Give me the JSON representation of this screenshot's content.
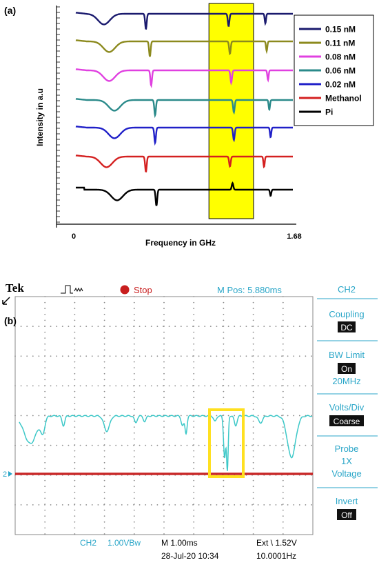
{
  "panel_a": {
    "label": "(a)",
    "chart_data": {
      "type": "line",
      "xlabel": "Frequency in GHz",
      "ylabel": "Intensity in a.u",
      "x_ticks": [
        "0",
        "1.68"
      ],
      "xlim": [
        0,
        1.68
      ],
      "highlight": {
        "x_range": [
          1.03,
          1.37
        ],
        "color": "#ffff00"
      },
      "legend_position": "top-right",
      "series": [
        {
          "name": "0.15 nM",
          "color": "#1a1a6e",
          "dips": [
            {
              "x": 0.23,
              "depth": 0.55
            },
            {
              "x": 0.55,
              "depth": 0.85
            },
            {
              "x": 1.18,
              "depth": 0.75
            },
            {
              "x": 1.46,
              "depth": 0.7
            }
          ]
        },
        {
          "name": "0.11 nM",
          "color": "#8c8a1e",
          "dips": [
            {
              "x": 0.27,
              "depth": 0.55
            },
            {
              "x": 0.58,
              "depth": 0.85
            },
            {
              "x": 1.19,
              "depth": 0.75
            },
            {
              "x": 1.47,
              "depth": 0.7
            }
          ]
        },
        {
          "name": "0.08 nM",
          "color": "#e040e0",
          "dips": [
            {
              "x": 0.27,
              "depth": 0.55
            },
            {
              "x": 0.59,
              "depth": 0.85
            },
            {
              "x": 1.2,
              "depth": 0.75
            },
            {
              "x": 1.48,
              "depth": 0.7
            }
          ]
        },
        {
          "name": "0.06 nM",
          "color": "#2a8a8a",
          "dips": [
            {
              "x": 0.31,
              "depth": 0.55
            },
            {
              "x": 0.62,
              "depth": 0.85
            },
            {
              "x": 1.22,
              "depth": 0.75
            },
            {
              "x": 1.49,
              "depth": 0.7
            }
          ]
        },
        {
          "name": "0.02 nM",
          "color": "#2020c8",
          "dips": [
            {
              "x": 0.31,
              "depth": 0.55
            },
            {
              "x": 0.62,
              "depth": 0.85
            },
            {
              "x": 1.22,
              "depth": 0.75
            },
            {
              "x": 1.5,
              "depth": 0.7
            }
          ]
        },
        {
          "name": "Methanol",
          "color": "#d42020",
          "dips": [
            {
              "x": 0.25,
              "depth": 0.55
            },
            {
              "x": 0.55,
              "depth": 0.85
            },
            {
              "x": 1.19,
              "depth": 0.6
            },
            {
              "x": 1.45,
              "depth": 0.75
            }
          ]
        },
        {
          "name": "Pi",
          "color": "#000000",
          "dips": [
            {
              "x": 0.33,
              "depth": 0.55
            },
            {
              "x": 0.63,
              "depth": 0.9
            },
            {
              "x": 1.21,
              "depth": -0.4
            },
            {
              "x": 1.5,
              "depth": 0.45
            }
          ]
        }
      ]
    }
  },
  "panel_b": {
    "label": "(b)",
    "brand": "Tek",
    "status": "Stop",
    "m_pos": "M Pos: 5.880ms",
    "ch_marker": "2",
    "bottom": {
      "ch2": "CH2",
      "ch2_scale": "1.00VBw",
      "timebase": "M 1.00ms",
      "date": "28-Jul-20 10:34",
      "trigger": "Ext \\ 1.52V",
      "freq": "10.0001Hz"
    },
    "side_menu": {
      "title": "CH2",
      "items": [
        {
          "label": "Coupling",
          "value": "DC"
        },
        {
          "label": "BW Limit",
          "value": "On",
          "extra": "20MHz"
        },
        {
          "label": "Volts/Div",
          "value": "Coarse"
        },
        {
          "label": "Probe",
          "value": "1X",
          "extra": "Voltage"
        },
        {
          "label": "Invert",
          "value": "Off"
        }
      ]
    },
    "colors": {
      "trace": "#3cc8c8",
      "reference": "#c82828",
      "highlight": "#ffe020",
      "text": "#2aa6c8"
    }
  }
}
